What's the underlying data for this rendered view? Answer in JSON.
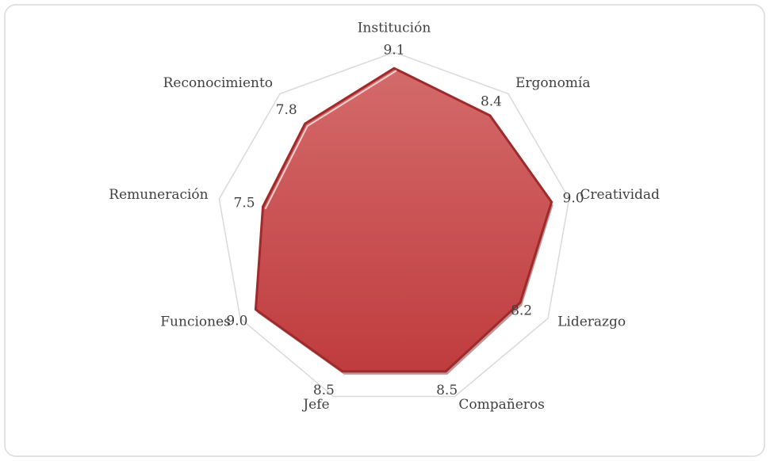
{
  "chart_data": {
    "type": "radar",
    "categories": [
      "Institución",
      "Ergonomía",
      "Creatividad",
      "Liderazgo",
      "Compañeros",
      "Jefe",
      "Funciones",
      "Remuneración",
      "Reconocimiento"
    ],
    "values": [
      9.1,
      8.4,
      9.0,
      8.2,
      8.5,
      8.5,
      9.0,
      7.5,
      7.8
    ],
    "value_labels": [
      "9.1",
      "8.4",
      "9.0",
      "8.2",
      "8.5",
      "8.5",
      "9.0",
      "7.5",
      "7.8"
    ],
    "rlim": [
      0,
      10
    ],
    "color": "#c8474a"
  }
}
